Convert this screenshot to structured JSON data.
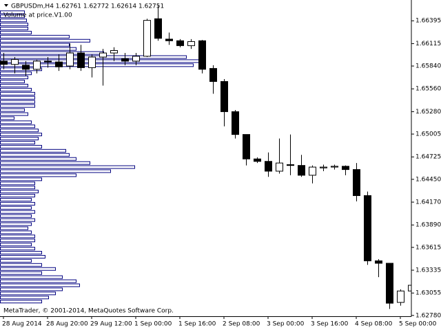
{
  "chart_data": {
    "type": "candlestick",
    "title": "GBPUSDm,H4  1.62761 1.62772 1.62614 1.62751",
    "subtitle": "Volume at price.V1.00",
    "annotation": "MetaTrader, © 2001-2014, MetaQuotes Software Corp.",
    "categories": [
      "28 Aug 2014",
      null,
      null,
      null,
      "28 Aug 20:00",
      null,
      null,
      null,
      "29 Aug 12:00",
      null,
      null,
      null,
      "1 Sep 00:00",
      null,
      null,
      null,
      "1 Sep 16:00",
      null,
      null,
      null,
      "2 Sep 08:00",
      null,
      null,
      null,
      "3 Sep 00:00",
      null,
      null,
      null,
      "3 Sep 16:00",
      null,
      null,
      null,
      "4 Sep 08:00",
      null,
      null,
      null,
      "5 Sep 00:00",
      null
    ],
    "open": [
      1.659,
      1.6586,
      1.6585,
      1.658,
      1.659,
      1.6589,
      1.6584,
      1.66,
      1.6582,
      1.6595,
      1.66,
      1.6593,
      1.659,
      1.6596,
      1.6642,
      1.6617,
      1.6615,
      1.6609,
      1.6615,
      1.6581,
      1.6565,
      1.6528,
      1.65,
      1.647,
      1.6467,
      1.6455,
      1.6463,
      1.6462,
      1.645,
      1.6459,
      1.646,
      1.6461,
      1.6457,
      1.6425,
      1.6345,
      1.6342,
      1.6294,
      1.6308
    ],
    "high": [
      1.66,
      1.6595,
      1.659,
      1.6592,
      1.6595,
      1.6598,
      1.6612,
      1.661,
      1.6598,
      1.6605,
      1.6607,
      1.66,
      1.66,
      1.6642,
      1.6658,
      1.6625,
      1.6617,
      1.6617,
      1.6616,
      1.6585,
      1.6568,
      1.653,
      1.65,
      1.6472,
      1.6478,
      1.6495,
      1.65,
      1.6475,
      1.6462,
      1.6463,
      1.6463,
      1.6462,
      1.6465,
      1.643,
      1.6347,
      1.6342,
      1.631,
      1.6324
    ],
    "low": [
      1.658,
      1.6575,
      1.6572,
      1.6575,
      1.6582,
      1.6578,
      1.658,
      1.6578,
      1.657,
      1.656,
      1.659,
      1.6585,
      1.6585,
      1.6595,
      1.6615,
      1.661,
      1.6607,
      1.6605,
      1.6575,
      1.655,
      1.651,
      1.6495,
      1.6462,
      1.6465,
      1.6448,
      1.6452,
      1.645,
      1.6448,
      1.644,
      1.6455,
      1.6457,
      1.645,
      1.6418,
      1.634,
      1.6325,
      1.6286,
      1.629,
      1.6304
    ],
    "close": [
      1.6586,
      1.6592,
      1.658,
      1.659,
      1.6589,
      1.6583,
      1.66,
      1.6582,
      1.6595,
      1.66,
      1.6603,
      1.659,
      1.6596,
      1.664,
      1.6618,
      1.6615,
      1.6609,
      1.6614,
      1.658,
      1.6565,
      1.6528,
      1.65,
      1.647,
      1.6467,
      1.6455,
      1.6465,
      1.6462,
      1.645,
      1.646,
      1.646,
      1.6461,
      1.6457,
      1.6425,
      1.6345,
      1.6342,
      1.6293,
      1.6308,
      1.6315
    ],
    "up_color": "#ffffff",
    "down_color": "#000000",
    "profile_levels": [
      1.665,
      1.6645,
      1.664,
      1.6635,
      1.663,
      1.6625,
      1.662,
      1.6615,
      1.661,
      1.6605,
      1.66,
      1.6595,
      1.659,
      1.6585,
      1.658,
      1.6575,
      1.657,
      1.6565,
      1.656,
      1.6555,
      1.655,
      1.6545,
      1.654,
      1.6535,
      1.653,
      1.6525,
      1.652,
      1.6515,
      1.651,
      1.6505,
      1.65,
      1.6495,
      1.649,
      1.6485,
      1.648,
      1.6475,
      1.647,
      1.6465,
      1.646,
      1.6455,
      1.645,
      1.6445,
      1.644,
      1.6435,
      1.643,
      1.6425,
      1.642,
      1.6415,
      1.641,
      1.6405,
      1.64,
      1.6395,
      1.639,
      1.6385,
      1.638,
      1.6375,
      1.637,
      1.6365,
      1.636,
      1.6355,
      1.635,
      1.6345,
      1.634,
      1.6335,
      1.633,
      1.6325,
      1.632,
      1.6315,
      1.631,
      1.6305,
      1.63,
      1.6295
    ],
    "profile_volumes": [
      35,
      35,
      38,
      40,
      40,
      45,
      100,
      130,
      100,
      110,
      150,
      270,
      290,
      280,
      60,
      45,
      40,
      35,
      40,
      45,
      50,
      50,
      50,
      50,
      35,
      40,
      20,
      45,
      50,
      55,
      60,
      55,
      50,
      60,
      95,
      100,
      110,
      130,
      195,
      160,
      110,
      60,
      50,
      50,
      55,
      50,
      45,
      50,
      45,
      50,
      45,
      50,
      45,
      40,
      45,
      50,
      50,
      45,
      50,
      60,
      65,
      45,
      60,
      80,
      60,
      90,
      110,
      115,
      90,
      80,
      70,
      60
    ],
    "profile_color": "#000080",
    "profile_xlim": [
      0,
      600
    ],
    "ylim": [
      1.6277,
      1.6665
    ],
    "yticks": [
      1.66395,
      1.66115,
      {
        "value": 1.6584,
        "label": "1.65840"
      },
      {
        "value": 1.6556,
        "label": "1.65560"
      },
      {
        "value": 1.6528,
        "label": "1.65280"
      },
      1.65005,
      1.64725,
      {
        "value": 1.6445,
        "label": "1.64450"
      },
      {
        "value": 1.6417,
        "label": "1.64170"
      },
      {
        "value": 1.6389,
        "label": "1.63890"
      },
      1.63615,
      1.63335,
      1.63055,
      {
        "value": 1.6278,
        "label": "1.62780"
      }
    ]
  }
}
